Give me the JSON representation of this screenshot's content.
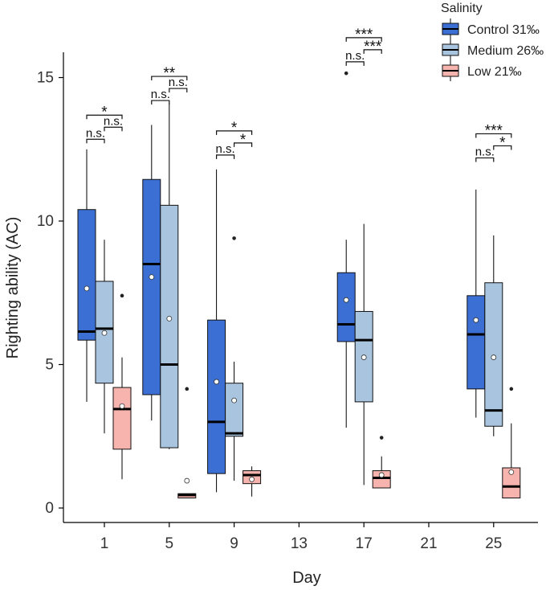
{
  "chart_data": {
    "type": "boxplot",
    "xlabel": "Day",
    "ylabel": "Righting ability (AC)",
    "x_ticks": [
      "1",
      "5",
      "9",
      "13",
      "17",
      "21",
      "25"
    ],
    "y_ticks": [
      "0",
      "5",
      "10",
      "15"
    ],
    "ylim": [
      -0.5,
      16
    ],
    "legend": {
      "title": "Salinity",
      "position": "top-right",
      "entries": [
        "Control 31‰",
        "Medium 26‰",
        "Low 21‰"
      ]
    },
    "colors": {
      "Control 31‰": "#3c6fd4",
      "Medium 26‰": "#a9c4de",
      "Low 21‰": "#f7b3ad",
      "median": "#000000",
      "mean_marker": "#ffffff"
    },
    "groups": [
      {
        "day": "1",
        "boxes": [
          {
            "series": "Control 31‰",
            "whisker_low": 3.7,
            "q1": 5.85,
            "median": 6.15,
            "q3": 10.4,
            "whisker_high": 12.5,
            "mean": 7.65,
            "outliers": []
          },
          {
            "series": "Medium 26‰",
            "whisker_low": 2.6,
            "q1": 4.35,
            "median": 6.25,
            "q3": 7.9,
            "whisker_high": 9.35,
            "mean": 6.1,
            "outliers": []
          },
          {
            "series": "Low 21‰",
            "whisker_low": 1.0,
            "q1": 2.05,
            "median": 3.45,
            "q3": 4.2,
            "whisker_high": 5.25,
            "mean": 3.55,
            "outliers": [
              7.4
            ]
          }
        ]
      },
      {
        "day": "5",
        "boxes": [
          {
            "series": "Control 31‰",
            "whisker_low": 3.05,
            "q1": 3.95,
            "median": 8.5,
            "q3": 11.45,
            "whisker_high": 13.35,
            "mean": 8.05,
            "outliers": []
          },
          {
            "series": "Medium 26‰",
            "whisker_low": 2.05,
            "q1": 2.1,
            "median": 5.0,
            "q3": 10.55,
            "whisker_high": 14.1,
            "mean": 6.6,
            "outliers": []
          },
          {
            "series": "Low 21‰",
            "whisker_low": 0.35,
            "q1": 0.35,
            "median": 0.45,
            "q3": 0.5,
            "whisker_high": 0.5,
            "mean": 0.95,
            "outliers": [
              4.15
            ]
          }
        ]
      },
      {
        "day": "9",
        "boxes": [
          {
            "series": "Control 31‰",
            "whisker_low": 0.55,
            "q1": 1.2,
            "median": 3.0,
            "q3": 6.55,
            "whisker_high": 11.8,
            "mean": 4.4,
            "outliers": []
          },
          {
            "series": "Medium 26‰",
            "whisker_low": 0.95,
            "q1": 2.5,
            "median": 2.6,
            "q3": 4.35,
            "whisker_high": 5.1,
            "mean": 3.75,
            "outliers": [
              9.4
            ]
          },
          {
            "series": "Low 21‰",
            "whisker_low": 0.4,
            "q1": 0.85,
            "median": 1.15,
            "q3": 1.3,
            "whisker_high": 1.45,
            "mean": 1.0,
            "outliers": []
          }
        ]
      },
      {
        "day": "17",
        "boxes": [
          {
            "series": "Control 31‰",
            "whisker_low": 2.8,
            "q1": 5.8,
            "median": 6.4,
            "q3": 8.2,
            "whisker_high": 9.35,
            "mean": 7.25,
            "outliers": [
              15.15
            ]
          },
          {
            "series": "Medium 26‰",
            "whisker_low": 0.8,
            "q1": 3.7,
            "median": 5.85,
            "q3": 6.85,
            "whisker_high": 9.9,
            "mean": 5.25,
            "outliers": []
          },
          {
            "series": "Low 21‰",
            "whisker_low": 0.7,
            "q1": 0.7,
            "median": 1.05,
            "q3": 1.3,
            "whisker_high": 1.8,
            "mean": 1.15,
            "outliers": [
              2.45
            ]
          }
        ]
      },
      {
        "day": "25",
        "boxes": [
          {
            "series": "Control 31‰",
            "whisker_low": 3.15,
            "q1": 4.15,
            "median": 6.05,
            "q3": 7.4,
            "whisker_high": 11.1,
            "mean": 6.55,
            "outliers": []
          },
          {
            "series": "Medium 26‰",
            "whisker_low": 2.5,
            "q1": 2.85,
            "median": 3.4,
            "q3": 7.85,
            "whisker_high": 9.5,
            "mean": 5.25,
            "outliers": []
          },
          {
            "series": "Low 21‰",
            "whisker_low": 0.35,
            "q1": 0.35,
            "median": 0.75,
            "q3": 1.4,
            "whisker_high": 2.95,
            "mean": 1.25,
            "outliers": [
              4.15
            ]
          }
        ]
      }
    ],
    "significance": [
      {
        "day": "1",
        "from": 0,
        "to": 1,
        "label": "n.s.",
        "level": 0
      },
      {
        "day": "1",
        "from": 1,
        "to": 2,
        "label": "n.s.",
        "level": 1
      },
      {
        "day": "1",
        "from": 0,
        "to": 2,
        "label": "*",
        "level": 2
      },
      {
        "day": "5",
        "from": 0,
        "to": 1,
        "label": "n.s.",
        "level": 0
      },
      {
        "day": "5",
        "from": 1,
        "to": 2,
        "label": "n.s.",
        "level": 1
      },
      {
        "day": "5",
        "from": 0,
        "to": 2,
        "label": "**",
        "level": 2
      },
      {
        "day": "9",
        "from": 0,
        "to": 1,
        "label": "n.s.",
        "level": 0
      },
      {
        "day": "9",
        "from": 1,
        "to": 2,
        "label": "*",
        "level": 1
      },
      {
        "day": "9",
        "from": 0,
        "to": 2,
        "label": "*",
        "level": 2
      },
      {
        "day": "17",
        "from": 0,
        "to": 1,
        "label": "n.s.",
        "level": 0
      },
      {
        "day": "17",
        "from": 1,
        "to": 2,
        "label": "***",
        "level": 1
      },
      {
        "day": "17",
        "from": 0,
        "to": 2,
        "label": "***",
        "level": 2
      },
      {
        "day": "25",
        "from": 0,
        "to": 1,
        "label": "n.s.",
        "level": 0
      },
      {
        "day": "25",
        "from": 1,
        "to": 2,
        "label": "*",
        "level": 1
      },
      {
        "day": "25",
        "from": 0,
        "to": 2,
        "label": "***",
        "level": 2
      }
    ],
    "significance_base": {
      "1": 12.85,
      "5": 14.2,
      "9": 12.3,
      "17": 15.55,
      "25": 12.2
    }
  }
}
